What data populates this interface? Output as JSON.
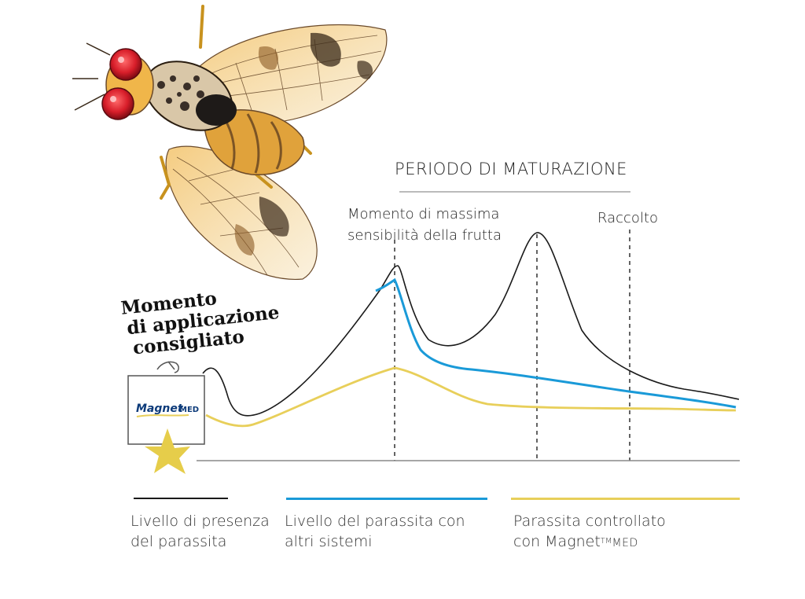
{
  "chart_data": {
    "type": "line",
    "title": "PERIODO DI MATURAZIONE",
    "xlabel": "",
    "ylabel": "",
    "annotations": {
      "sensitivity_line1": "Momento di massima",
      "sensitivity_line2": "sensibilità della frutta",
      "harvest": "Raccolto",
      "recommended_line1": "Momento",
      "recommended_line2": "di applicazione",
      "recommended_line3": "consigliato"
    },
    "device_label": "Magnet MED",
    "device_brand": "Magnet",
    "device_suffix": "MED",
    "series": [
      {
        "name": "Livello di presenza del parassita",
        "color": "#1a1a1a"
      },
      {
        "name": "Livello del parassita con altri sistemi",
        "color": "#1a9ad8"
      },
      {
        "name": "Parassita controllato con Magnet MED",
        "color": "#e8cf5a"
      }
    ]
  },
  "legend": [
    {
      "line1": "Livello di presenza",
      "line2": "del parassita",
      "color": "#1a1a1a"
    },
    {
      "line1": "Livello del parassita con",
      "line2": "altri sistemi",
      "color": "#1a9ad8"
    },
    {
      "line1": "Parassita controllato",
      "line2a": "con Magnet",
      "tm": "TM",
      "line2b": "MED",
      "color": "#e8cf5a"
    }
  ]
}
